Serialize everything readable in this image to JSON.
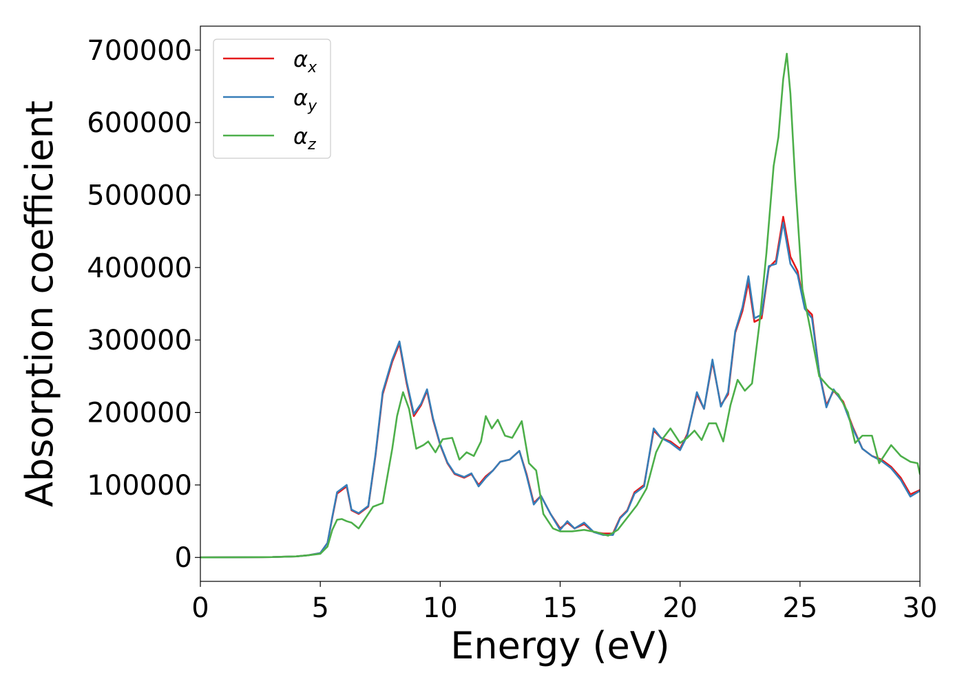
{
  "chart_data": {
    "type": "line",
    "title": "",
    "xlabel": "Energy (eV)",
    "ylabel": "Absorption coefficient",
    "xlim": [
      0,
      30
    ],
    "ylim": [
      -33000,
      733000
    ],
    "xticks": [
      0,
      5,
      10,
      15,
      20,
      25,
      30
    ],
    "xtick_labels": [
      "0",
      "5",
      "10",
      "15",
      "20",
      "25",
      "30"
    ],
    "yticks": [
      0,
      100000,
      200000,
      300000,
      400000,
      500000,
      600000,
      700000
    ],
    "ytick_labels": [
      "0",
      "100000",
      "200000",
      "300000",
      "400000",
      "500000",
      "600000",
      "700000"
    ],
    "grid": false,
    "legend_position": "top-left",
    "series": [
      {
        "name": "α",
        "subscript": "x",
        "color": "#e41a1c",
        "x": [
          0,
          3,
          4,
          4.5,
          5,
          5.3,
          5.5,
          5.7,
          5.9,
          6.1,
          6.3,
          6.6,
          7.0,
          7.3,
          7.6,
          8.0,
          8.3,
          8.6,
          8.9,
          9.2,
          9.45,
          9.7,
          10.0,
          10.3,
          10.6,
          11.0,
          11.3,
          11.6,
          11.9,
          12.2,
          12.5,
          12.9,
          13.3,
          13.6,
          13.9,
          14.2,
          14.6,
          15.0,
          15.3,
          15.6,
          16.0,
          16.4,
          16.8,
          17.2,
          17.5,
          17.8,
          18.1,
          18.5,
          18.9,
          19.2,
          19.6,
          20.0,
          20.3,
          20.7,
          21.0,
          21.35,
          21.7,
          22.0,
          22.3,
          22.6,
          22.85,
          23.1,
          23.4,
          23.7,
          24.0,
          24.3,
          24.6,
          24.9,
          25.2,
          25.5,
          25.8,
          26.1,
          26.4,
          26.8,
          27.2,
          27.6,
          28.0,
          28.4,
          28.8,
          29.2,
          29.6,
          30.0
        ],
        "values": [
          0,
          500,
          1500,
          3000,
          6000,
          20000,
          55000,
          88000,
          93000,
          98000,
          65000,
          60000,
          70000,
          140000,
          225000,
          270000,
          295000,
          240000,
          195000,
          210000,
          230000,
          190000,
          155000,
          130000,
          115000,
          110000,
          115000,
          100000,
          112000,
          120000,
          132000,
          135000,
          147000,
          115000,
          75000,
          85000,
          60000,
          40000,
          48000,
          40000,
          46000,
          35000,
          33000,
          33000,
          55000,
          65000,
          90000,
          100000,
          175000,
          165000,
          160000,
          150000,
          170000,
          225000,
          205000,
          270000,
          210000,
          225000,
          310000,
          340000,
          380000,
          325000,
          330000,
          400000,
          410000,
          470000,
          415000,
          395000,
          345000,
          335000,
          255000,
          210000,
          230000,
          215000,
          180000,
          150000,
          140000,
          135000,
          125000,
          110000,
          87000,
          93000
        ]
      },
      {
        "name": "α",
        "subscript": "y",
        "color": "#377eb8",
        "x": [
          0,
          3,
          4,
          4.5,
          5,
          5.3,
          5.5,
          5.7,
          5.9,
          6.1,
          6.3,
          6.6,
          7.0,
          7.3,
          7.6,
          8.0,
          8.3,
          8.6,
          8.9,
          9.2,
          9.45,
          9.7,
          10.0,
          10.3,
          10.6,
          11.0,
          11.3,
          11.6,
          11.9,
          12.2,
          12.5,
          12.9,
          13.3,
          13.6,
          13.9,
          14.2,
          14.6,
          15.0,
          15.3,
          15.6,
          16.0,
          16.4,
          16.8,
          17.2,
          17.5,
          17.8,
          18.1,
          18.5,
          18.9,
          19.2,
          19.6,
          20.0,
          20.3,
          20.7,
          21.0,
          21.35,
          21.7,
          22.0,
          22.3,
          22.6,
          22.85,
          23.1,
          23.4,
          23.7,
          24.0,
          24.3,
          24.6,
          24.9,
          25.2,
          25.5,
          25.8,
          26.1,
          26.4,
          26.8,
          27.2,
          27.6,
          28.0,
          28.4,
          28.8,
          29.2,
          29.6,
          30.0
        ],
        "values": [
          0,
          500,
          1500,
          3000,
          6000,
          20000,
          56000,
          90000,
          95000,
          100000,
          66000,
          61000,
          71000,
          142000,
          228000,
          273000,
          298000,
          243000,
          198000,
          212000,
          232000,
          192000,
          156000,
          131000,
          116000,
          111000,
          116000,
          98000,
          110000,
          120000,
          132000,
          135000,
          147000,
          113000,
          73000,
          85000,
          60000,
          38000,
          50000,
          40000,
          48000,
          35000,
          31000,
          31000,
          54000,
          64000,
          88000,
          98000,
          178000,
          165000,
          158000,
          148000,
          168000,
          228000,
          205000,
          273000,
          208000,
          228000,
          312000,
          345000,
          388000,
          330000,
          335000,
          402000,
          405000,
          462000,
          405000,
          390000,
          343000,
          330000,
          255000,
          207000,
          232000,
          213000,
          178000,
          150000,
          140000,
          133000,
          123000,
          107000,
          84000,
          92000
        ]
      },
      {
        "name": "α",
        "subscript": "z",
        "color": "#4daf4a",
        "x": [
          0,
          3,
          4,
          4.5,
          5,
          5.3,
          5.5,
          5.7,
          5.9,
          6.1,
          6.3,
          6.6,
          6.9,
          7.2,
          7.6,
          8.0,
          8.2,
          8.45,
          8.7,
          9.0,
          9.3,
          9.5,
          9.8,
          10.1,
          10.5,
          10.8,
          11.1,
          11.4,
          11.7,
          11.9,
          12.15,
          12.4,
          12.7,
          13.0,
          13.4,
          13.7,
          14.0,
          14.3,
          14.7,
          15.0,
          15.5,
          16.0,
          16.5,
          17.0,
          17.4,
          17.8,
          18.2,
          18.6,
          19.0,
          19.3,
          19.6,
          20.0,
          20.3,
          20.6,
          20.9,
          21.2,
          21.5,
          21.8,
          22.1,
          22.4,
          22.7,
          23.0,
          23.3,
          23.6,
          23.9,
          24.1,
          24.3,
          24.45,
          24.6,
          24.8,
          25.1,
          25.4,
          25.8,
          26.2,
          26.6,
          27.0,
          27.3,
          27.6,
          28.0,
          28.3,
          28.8,
          29.2,
          29.6,
          29.9,
          30.0
        ],
        "values": [
          0,
          500,
          1500,
          3000,
          5000,
          15000,
          38000,
          52000,
          53000,
          50000,
          48000,
          40000,
          55000,
          70000,
          75000,
          150000,
          195000,
          228000,
          205000,
          150000,
          155000,
          160000,
          145000,
          163000,
          165000,
          135000,
          145000,
          140000,
          160000,
          195000,
          178000,
          190000,
          168000,
          165000,
          188000,
          130000,
          120000,
          60000,
          40000,
          36000,
          36000,
          38000,
          35000,
          30000,
          38000,
          55000,
          72000,
          95000,
          145000,
          165000,
          178000,
          158000,
          165000,
          175000,
          162000,
          185000,
          185000,
          160000,
          210000,
          245000,
          230000,
          240000,
          320000,
          420000,
          540000,
          580000,
          660000,
          695000,
          640000,
          520000,
          370000,
          320000,
          250000,
          235000,
          225000,
          200000,
          158000,
          168000,
          168000,
          130000,
          155000,
          140000,
          132000,
          130000,
          115000
        ]
      }
    ]
  }
}
